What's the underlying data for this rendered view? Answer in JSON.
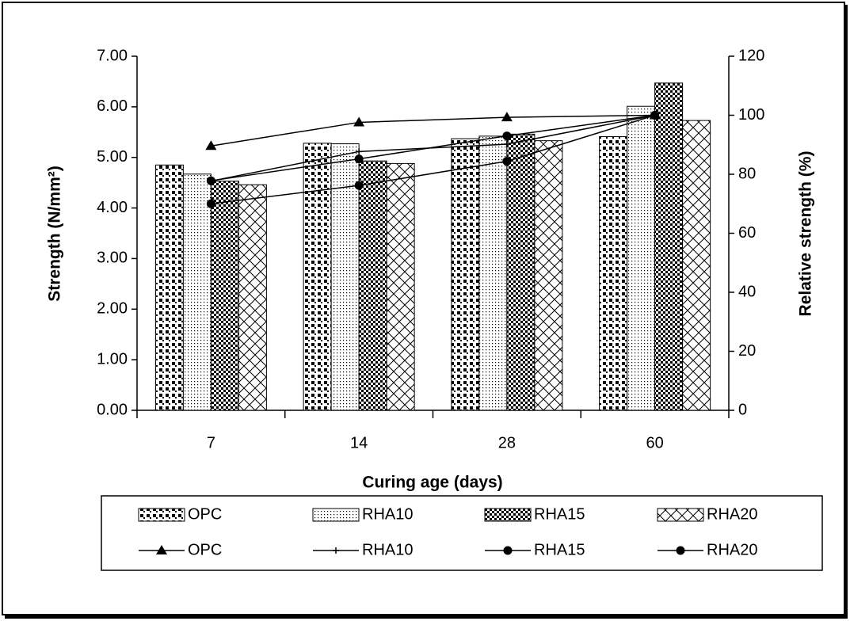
{
  "chart_data": {
    "type": "bar-line",
    "x_label": "Curing age (days)",
    "y_label": "Strength (N/mm²)",
    "y2_label": "Relative strength (%)",
    "categories": [
      "7",
      "14",
      "28",
      "60"
    ],
    "series": [
      {
        "name": "OPC",
        "type": "bar",
        "color": "#000000",
        "values": [
          4.85,
          5.28,
          5.37,
          5.41
        ]
      },
      {
        "name": "RHA10",
        "type": "bar",
        "color": "#000000",
        "values": [
          4.67,
          5.27,
          5.42,
          6.01
        ]
      },
      {
        "name": "RHA15",
        "type": "bar",
        "color": "#000000",
        "values": [
          4.53,
          4.93,
          5.46,
          6.47
        ]
      },
      {
        "name": "RHA20",
        "type": "bar",
        "color": "#000000",
        "values": [
          4.46,
          4.88,
          5.33,
          5.73
        ]
      },
      {
        "name": "OPC",
        "type": "line",
        "axis": "y2",
        "marker": "triangle",
        "color": "#000000",
        "values": [
          89.6,
          97.6,
          99.3,
          100
        ]
      },
      {
        "name": "RHA10",
        "type": "line",
        "axis": "y2",
        "marker": "plus",
        "color": "#000000",
        "values": [
          77.7,
          87.7,
          90.2,
          100
        ]
      },
      {
        "name": "RHA15",
        "type": "line",
        "axis": "y2",
        "marker": "circle",
        "color": "#000000",
        "values": [
          70.0,
          76.2,
          84.4,
          100
        ]
      },
      {
        "name": "RHA20",
        "type": "line",
        "axis": "y2",
        "marker": "circle",
        "color": "#000000",
        "values": [
          77.8,
          85.2,
          93.0,
          100
        ]
      }
    ],
    "ylim": [
      0,
      7
    ],
    "yticks": [
      {
        "value": 0,
        "label": "0.00"
      },
      {
        "value": 1,
        "label": "1.00"
      },
      {
        "value": 2,
        "label": "2.00"
      },
      {
        "value": 3,
        "label": "3.00"
      },
      {
        "value": 4,
        "label": "4.00"
      },
      {
        "value": 5,
        "label": "5.00"
      },
      {
        "value": 6,
        "label": "6.00"
      },
      {
        "value": 7,
        "label": "7.00"
      }
    ],
    "y2lim": [
      0,
      120
    ],
    "y2ticks": [
      0,
      20,
      40,
      60,
      80,
      100,
      120
    ],
    "legend": "bottom",
    "grid": false
  }
}
